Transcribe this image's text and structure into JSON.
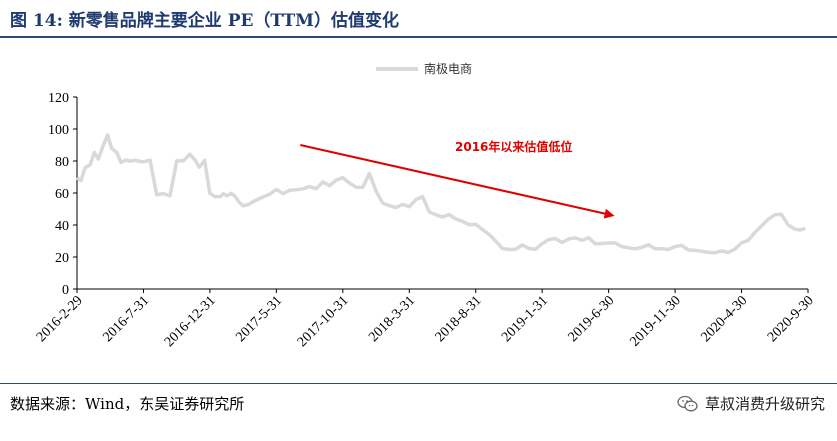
{
  "header": {
    "title": "图 14:  新零售品牌主要企业 PE（TTM）估值变化"
  },
  "footer": {
    "source": "数据来源：Wind，东吴证券研究所",
    "watermark": "草叔消费升级研究",
    "watermark_icon": "wechat-icon"
  },
  "chart_data": {
    "type": "line",
    "title": "图 14:  新零售品牌主要企业 PE（TTM）估值变化",
    "xlabel": "",
    "ylabel": "",
    "ylim": [
      0,
      120
    ],
    "yticks": [
      0,
      20,
      40,
      60,
      80,
      100,
      120
    ],
    "xticks": [
      "2016-2-29",
      "2016-7-31",
      "2016-12-31",
      "2017-5-31",
      "2017-10-31",
      "2018-3-31",
      "2018-8-31",
      "2019-1-31",
      "2019-6-30",
      "2019-11-30",
      "2020-4-30",
      "2020-9-30"
    ],
    "x_range": [
      0,
      55
    ],
    "legend": {
      "entries": [
        "南极电商"
      ],
      "placement": "top-center"
    },
    "series": [
      {
        "name": "南极电商",
        "color": "#d9d9d9",
        "x": [
          0,
          0.3,
          0.6,
          1.0,
          1.3,
          1.6,
          2.0,
          2.3,
          2.6,
          3.0,
          3.3,
          3.7,
          4.0,
          4.4,
          4.8,
          5.0,
          5.5,
          6.0,
          6.5,
          7.0,
          7.5,
          8.0,
          8.5,
          8.9,
          9.2,
          9.6,
          10.0,
          10.4,
          10.8,
          11.0,
          11.3,
          11.6,
          11.9,
          12.2,
          12.5,
          12.9,
          13.4,
          14.0,
          14.5,
          15.0,
          15.5,
          16.0,
          16.5,
          17.0,
          17.5,
          18.0,
          18.5,
          19.0,
          19.5,
          20.0,
          20.5,
          21.0,
          21.5,
          22.0,
          22.5,
          23.0,
          23.5,
          24.0,
          24.5,
          25.0,
          25.5,
          26.0,
          26.5,
          27.0,
          27.5,
          28.0,
          28.5,
          29.0,
          29.5,
          30.0,
          30.5,
          31.0,
          31.5,
          32.0,
          32.5,
          33.0,
          33.5,
          34.0,
          34.5,
          35.0,
          35.5,
          36.0,
          36.5,
          37.0,
          37.5,
          38.0,
          38.5,
          39.0,
          39.5,
          40.0,
          40.5,
          41.0,
          41.5,
          42.0,
          42.5,
          43.0,
          43.5,
          44.0,
          44.5,
          45.0,
          45.5,
          46.0,
          46.5,
          47.0,
          47.5,
          48.0,
          48.5,
          49.0,
          49.5,
          50.0,
          50.5,
          51.0,
          51.5,
          52.0,
          52.5,
          53.0,
          53.5,
          54.0,
          54.4,
          54.8
        ],
        "values": [
          70,
          68,
          75,
          78,
          85,
          82,
          90,
          96,
          88,
          85,
          80,
          80,
          80,
          80,
          80,
          80,
          80,
          59,
          59,
          59,
          80,
          80,
          84,
          80,
          77,
          80,
          60,
          57,
          58,
          60,
          58,
          60,
          57,
          55,
          52,
          53,
          55,
          57,
          60,
          62,
          60,
          61,
          62,
          63,
          64,
          63,
          66,
          65,
          68,
          70,
          66,
          63,
          64,
          72,
          62,
          53,
          52,
          51,
          53,
          52,
          55,
          58,
          48,
          47,
          45,
          46,
          44,
          42,
          41,
          40,
          37,
          34,
          30,
          26,
          24,
          25,
          27,
          26,
          25,
          28,
          31,
          31,
          30,
          31,
          32,
          30,
          32,
          29,
          28,
          29,
          28,
          27,
          26,
          25,
          26,
          27,
          26,
          25,
          25,
          26,
          27,
          25,
          24,
          24,
          22,
          23,
          24,
          23,
          25,
          28,
          31,
          35,
          40,
          43,
          46,
          47,
          40,
          38,
          36,
          38
        ]
      }
    ],
    "annotations": [
      {
        "text": "2016年以来估值低位",
        "color": "#e00000"
      }
    ],
    "arrow": {
      "from": [
        16.8,
        90
      ],
      "to": [
        40.3,
        46
      ],
      "color": "#e00000"
    }
  }
}
